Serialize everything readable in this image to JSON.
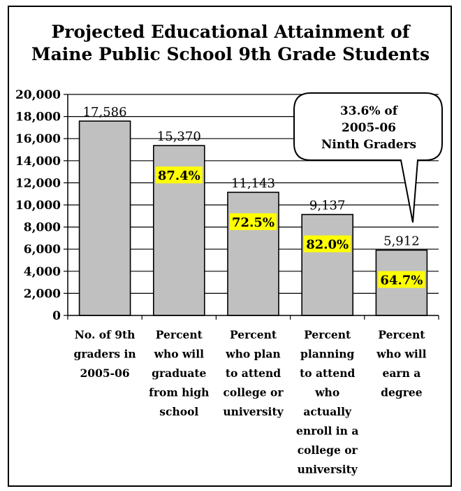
{
  "chart_data": {
    "type": "bar",
    "title_lines": [
      "Projected Educational Attainment of",
      "Maine Public School 9th Grade Students"
    ],
    "categories": [
      [
        "No. of 9th",
        "graders in",
        "2005-06"
      ],
      [
        "Percent",
        "who will",
        "graduate",
        "from high",
        "school"
      ],
      [
        "Percent",
        "who plan",
        "to attend",
        "college or",
        "university"
      ],
      [
        "Percent",
        "planning",
        "to attend",
        "who",
        "actually",
        "enroll in a",
        "college or",
        "university"
      ],
      [
        "Percent",
        "who will",
        "earn a",
        "degree"
      ]
    ],
    "values": [
      17586,
      15370,
      11143,
      9137,
      5912
    ],
    "value_labels": [
      "17,586",
      "15,370",
      "11,143",
      "9,137",
      "5,912"
    ],
    "percent_labels": [
      "",
      "87.4%",
      "72.5%",
      "82.0%",
      "64.7%"
    ],
    "y_ticks": [
      "0",
      "2,000",
      "4,000",
      "6,000",
      "8,000",
      "10,000",
      "12,000",
      "14,000",
      "16,000",
      "18,000",
      "20,000"
    ],
    "ylim": [
      0,
      20000
    ],
    "grid": true,
    "bar_color": "#c0c0c0",
    "highlight_color": "#ffff00",
    "callout_lines": [
      "33.6% of",
      "2005-06",
      "Ninth Graders"
    ]
  }
}
